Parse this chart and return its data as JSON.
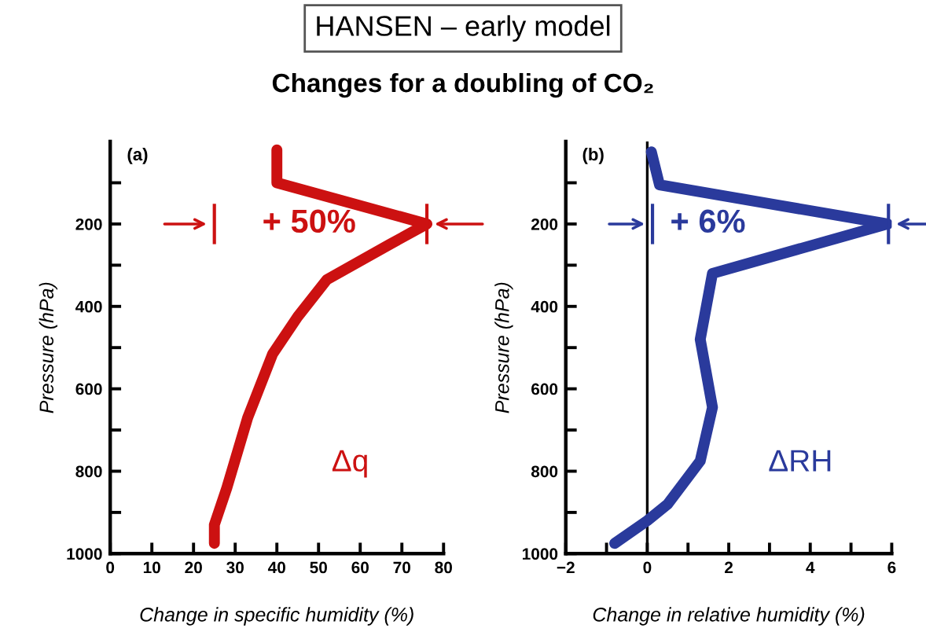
{
  "chart_data": [
    {
      "type": "line",
      "title": "HANSEN – early model",
      "subtitle": "Changes for a doubling of CO₂",
      "xlabel": "Change in specific humidity (%)",
      "ylabel": "Pressure (hPa)",
      "xlim": [
        0,
        80
      ],
      "xticks": [
        0,
        10,
        20,
        30,
        40,
        50,
        60,
        70,
        80
      ],
      "ylim": [
        1000,
        0
      ],
      "yticks": [
        {
          "value": 100,
          "label": null
        },
        200,
        {
          "value": 300,
          "label": null
        },
        400,
        {
          "value": 500,
          "label": null
        },
        600,
        {
          "value": 700,
          "label": null
        },
        800,
        {
          "value": 900,
          "label": null
        },
        1000
      ],
      "series": [
        {
          "name": "Δq",
          "color": "#cc1111",
          "x": [
            40,
            40,
            76,
            67,
            52,
            45,
            39,
            33,
            28,
            25,
            25
          ],
          "values": [
            20,
            100,
            200,
            250,
            335,
            425,
            515,
            670,
            840,
            930,
            975
          ]
        }
      ],
      "annotations": [
        "(a)",
        "+ 50%"
      ]
    },
    {
      "type": "line",
      "xlabel": "Change in relative humidity (%)",
      "ylabel": "Pressure (hPa)",
      "xlim": [
        -2,
        6
      ],
      "xticks": [
        {
          "value": -2,
          "label": "−2"
        },
        {
          "value": -1,
          "label": null
        },
        0,
        {
          "value": 1,
          "label": null
        },
        2,
        {
          "value": 3,
          "label": null
        },
        4,
        {
          "value": 5,
          "label": null
        },
        6
      ],
      "ylim": [
        1000,
        0
      ],
      "yticks": [
        {
          "value": 100,
          "label": null
        },
        200,
        {
          "value": 300,
          "label": null
        },
        400,
        {
          "value": 500,
          "label": null
        },
        600,
        {
          "value": 700,
          "label": null
        },
        800,
        {
          "value": 900,
          "label": null
        },
        1000
      ],
      "series": [
        {
          "name": "ΔRH",
          "color": "#2a3a9c",
          "x": [
            0.1,
            0.3,
            5.9,
            1.6,
            1.3,
            1.6,
            1.3,
            0.5,
            0,
            -0.8
          ],
          "values": [
            25,
            105,
            200,
            320,
            480,
            645,
            775,
            880,
            920,
            975
          ]
        }
      ],
      "ref_lines": [
        {
          "axis": "x",
          "value": 0,
          "color": "#000000"
        }
      ],
      "annotations": [
        "(b)",
        "+ 6%"
      ]
    }
  ]
}
